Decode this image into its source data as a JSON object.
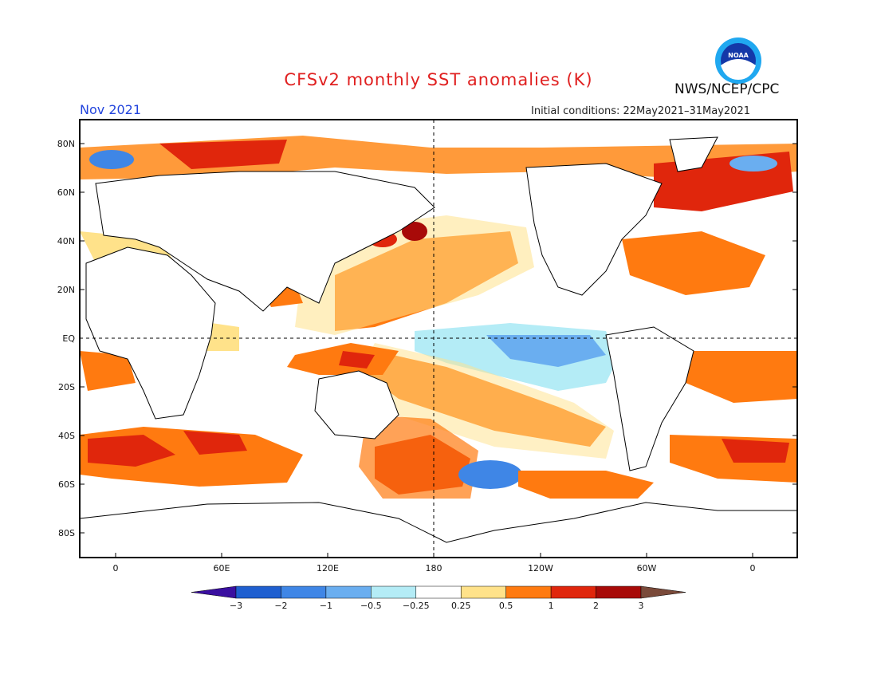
{
  "title": "CFSv2 monthly SST anomalies (K)",
  "agency": "NWS/NCEP/CPC",
  "logo_text": "NOAA",
  "month": "Nov 2021",
  "initial_conditions": "Initial conditions: 22May2021–31May2021",
  "axes": {
    "lat_labels": [
      "80N",
      "60N",
      "40N",
      "20N",
      "EQ",
      "20S",
      "40S",
      "60S",
      "80S"
    ],
    "lon_labels": [
      "0",
      "60E",
      "120E",
      "180",
      "120W",
      "60W",
      "0"
    ]
  },
  "colorbar": {
    "labels": [
      "−3",
      "−2",
      "−1",
      "−0.5",
      "−0.25",
      "0.25",
      "0.5",
      "1",
      "2",
      "3"
    ],
    "colors": [
      "#3a0fa0",
      "#1f5fd0",
      "#3f86e6",
      "#6aaef0",
      "#b4ecf6",
      "#ffffff",
      "#ffe28a",
      "#ff7a10",
      "#e0260c",
      "#a80a08",
      "#7a4a3a"
    ]
  },
  "palette": {
    "light_blue": "#b4ecf6",
    "mid_blue": "#6aaef0",
    "blue": "#3f86e6",
    "yellow": "#ffe28a",
    "orange": "#ff7a10",
    "red": "#e0260c",
    "dark_red": "#a80a08"
  }
}
